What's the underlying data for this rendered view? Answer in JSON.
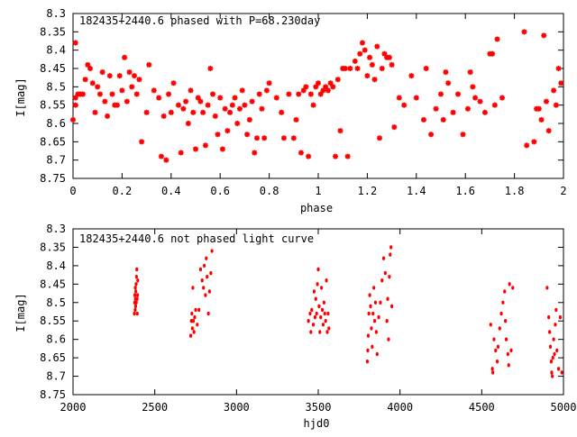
{
  "chart_data": [
    {
      "type": "scatter",
      "title": "182435+2440.6 phased with P=68.230day",
      "xlabel": "phase",
      "ylabel": "I[mag]",
      "xlim": [
        0,
        2
      ],
      "ylim": [
        8.75,
        8.3
      ],
      "y_inverted": true,
      "grid": false,
      "marker": "star",
      "color": "#ff0000",
      "x_ticks": [
        "0",
        "0.2",
        "0.4",
        "0.6",
        "0.8",
        "1",
        "1.2",
        "1.4",
        "1.6",
        "1.8",
        "2"
      ],
      "y_ticks": [
        "8.3",
        "8.35",
        "8.4",
        "8.45",
        "8.5",
        "8.55",
        "8.6",
        "8.65",
        "8.7",
        "8.75"
      ],
      "points": [
        [
          0.0,
          8.59
        ],
        [
          0.01,
          8.38
        ],
        [
          0.01,
          8.55
        ],
        [
          0.01,
          8.53
        ],
        [
          0.02,
          8.52
        ],
        [
          0.03,
          8.52
        ],
        [
          0.04,
          8.52
        ],
        [
          0.05,
          8.48
        ],
        [
          0.06,
          8.44
        ],
        [
          0.07,
          8.45
        ],
        [
          0.08,
          8.49
        ],
        [
          0.09,
          8.57
        ],
        [
          0.1,
          8.5
        ],
        [
          0.11,
          8.52
        ],
        [
          0.12,
          8.46
        ],
        [
          0.13,
          8.54
        ],
        [
          0.14,
          8.58
        ],
        [
          0.15,
          8.47
        ],
        [
          0.16,
          8.52
        ],
        [
          0.17,
          8.55
        ],
        [
          0.18,
          8.55
        ],
        [
          0.19,
          8.47
        ],
        [
          0.2,
          8.51
        ],
        [
          0.21,
          8.42
        ],
        [
          0.22,
          8.54
        ],
        [
          0.23,
          8.46
        ],
        [
          0.24,
          8.5
        ],
        [
          0.25,
          8.47
        ],
        [
          0.26,
          8.52
        ],
        [
          0.27,
          8.48
        ],
        [
          0.28,
          8.65
        ],
        [
          0.3,
          8.57
        ],
        [
          0.31,
          8.44
        ],
        [
          0.33,
          8.51
        ],
        [
          0.35,
          8.53
        ],
        [
          0.36,
          8.69
        ],
        [
          0.37,
          8.58
        ],
        [
          0.38,
          8.7
        ],
        [
          0.39,
          8.52
        ],
        [
          0.4,
          8.57
        ],
        [
          0.41,
          8.49
        ],
        [
          0.43,
          8.55
        ],
        [
          0.44,
          8.68
        ],
        [
          0.45,
          8.56
        ],
        [
          0.46,
          8.54
        ],
        [
          0.47,
          8.6
        ],
        [
          0.48,
          8.51
        ],
        [
          0.49,
          8.57
        ],
        [
          0.5,
          8.67
        ],
        [
          0.51,
          8.53
        ],
        [
          0.52,
          8.54
        ],
        [
          0.53,
          8.57
        ],
        [
          0.54,
          8.66
        ],
        [
          0.55,
          8.55
        ],
        [
          0.56,
          8.45
        ],
        [
          0.57,
          8.52
        ],
        [
          0.58,
          8.58
        ],
        [
          0.59,
          8.63
        ],
        [
          0.6,
          8.53
        ],
        [
          0.61,
          8.67
        ],
        [
          0.62,
          8.56
        ],
        [
          0.63,
          8.62
        ],
        [
          0.64,
          8.57
        ],
        [
          0.65,
          8.55
        ],
        [
          0.66,
          8.53
        ],
        [
          0.67,
          8.6
        ],
        [
          0.68,
          8.56
        ],
        [
          0.69,
          8.51
        ],
        [
          0.7,
          8.55
        ],
        [
          0.71,
          8.63
        ],
        [
          0.72,
          8.59
        ],
        [
          0.73,
          8.54
        ],
        [
          0.74,
          8.68
        ],
        [
          0.75,
          8.64
        ],
        [
          0.76,
          8.52
        ],
        [
          0.77,
          8.56
        ],
        [
          0.78,
          8.64
        ],
        [
          0.79,
          8.51
        ],
        [
          0.8,
          8.49
        ],
        [
          0.83,
          8.53
        ],
        [
          0.85,
          8.57
        ],
        [
          0.86,
          8.64
        ],
        [
          0.88,
          8.52
        ],
        [
          0.9,
          8.64
        ],
        [
          0.91,
          8.59
        ],
        [
          0.92,
          8.52
        ],
        [
          0.93,
          8.68
        ],
        [
          0.94,
          8.51
        ],
        [
          0.95,
          8.5
        ],
        [
          0.96,
          8.69
        ],
        [
          0.97,
          8.52
        ],
        [
          0.98,
          8.55
        ],
        [
          0.99,
          8.5
        ],
        [
          1.0,
          8.49
        ],
        [
          1.01,
          8.52
        ],
        [
          1.02,
          8.51
        ],
        [
          1.03,
          8.5
        ],
        [
          1.04,
          8.51
        ],
        [
          1.05,
          8.49
        ],
        [
          1.06,
          8.5
        ],
        [
          1.07,
          8.69
        ],
        [
          1.08,
          8.48
        ],
        [
          1.09,
          8.62
        ],
        [
          1.1,
          8.45
        ],
        [
          1.11,
          8.45
        ],
        [
          1.12,
          8.69
        ],
        [
          1.13,
          8.45
        ],
        [
          1.15,
          8.43
        ],
        [
          1.16,
          8.45
        ],
        [
          1.17,
          8.41
        ],
        [
          1.18,
          8.38
        ],
        [
          1.19,
          8.4
        ],
        [
          1.2,
          8.47
        ],
        [
          1.21,
          8.42
        ],
        [
          1.22,
          8.44
        ],
        [
          1.23,
          8.48
        ],
        [
          1.24,
          8.39
        ],
        [
          1.25,
          8.64
        ],
        [
          1.26,
          8.45
        ],
        [
          1.27,
          8.41
        ],
        [
          1.28,
          8.42
        ],
        [
          1.29,
          8.42
        ],
        [
          1.3,
          8.44
        ],
        [
          1.31,
          8.61
        ],
        [
          1.33,
          8.53
        ],
        [
          1.35,
          8.55
        ],
        [
          1.38,
          8.47
        ],
        [
          1.4,
          8.53
        ],
        [
          1.43,
          8.59
        ],
        [
          1.44,
          8.45
        ],
        [
          1.46,
          8.63
        ],
        [
          1.48,
          8.56
        ],
        [
          1.5,
          8.52
        ],
        [
          1.51,
          8.59
        ],
        [
          1.52,
          8.46
        ],
        [
          1.53,
          8.49
        ],
        [
          1.55,
          8.57
        ],
        [
          1.57,
          8.52
        ],
        [
          1.59,
          8.63
        ],
        [
          1.61,
          8.56
        ],
        [
          1.62,
          8.46
        ],
        [
          1.63,
          8.5
        ],
        [
          1.64,
          8.53
        ],
        [
          1.66,
          8.54
        ],
        [
          1.68,
          8.57
        ],
        [
          1.7,
          8.41
        ],
        [
          1.71,
          8.41
        ],
        [
          1.72,
          8.55
        ],
        [
          1.73,
          8.37
        ],
        [
          1.75,
          8.53
        ],
        [
          1.84,
          8.35
        ],
        [
          1.85,
          8.66
        ],
        [
          1.88,
          8.65
        ],
        [
          1.89,
          8.56
        ],
        [
          1.9,
          8.56
        ],
        [
          1.91,
          8.59
        ],
        [
          1.92,
          8.36
        ],
        [
          1.93,
          8.54
        ],
        [
          1.94,
          8.62
        ],
        [
          1.96,
          8.51
        ],
        [
          1.97,
          8.55
        ],
        [
          1.98,
          8.45
        ],
        [
          1.99,
          8.49
        ]
      ]
    },
    {
      "type": "scatter",
      "title": "182435+2440.6 not phased light curve",
      "xlabel": "hjd0",
      "ylabel": "I[mag]",
      "xlim": [
        2000,
        5000
      ],
      "ylim": [
        8.75,
        8.3
      ],
      "y_inverted": true,
      "grid": false,
      "marker": "dot",
      "color": "#ff0000",
      "x_ticks": [
        "2000",
        "2500",
        "3000",
        "3500",
        "4000",
        "4500",
        "5000"
      ],
      "y_ticks": [
        "8.3",
        "8.35",
        "8.4",
        "8.45",
        "8.5",
        "8.55",
        "8.6",
        "8.65",
        "8.7",
        "8.75"
      ],
      "points": [
        [
          2375,
          8.53
        ],
        [
          2377,
          8.5
        ],
        [
          2378,
          8.48
        ],
        [
          2380,
          8.52
        ],
        [
          2381,
          8.46
        ],
        [
          2382,
          8.49
        ],
        [
          2383,
          8.51
        ],
        [
          2384,
          8.47
        ],
        [
          2386,
          8.45
        ],
        [
          2387,
          8.5
        ],
        [
          2388,
          8.43
        ],
        [
          2390,
          8.41
        ],
        [
          2392,
          8.49
        ],
        [
          2393,
          8.53
        ],
        [
          2395,
          8.48
        ],
        [
          2396,
          8.44
        ],
        [
          2720,
          8.59
        ],
        [
          2724,
          8.55
        ],
        [
          2727,
          8.53
        ],
        [
          2730,
          8.57
        ],
        [
          2733,
          8.46
        ],
        [
          2736,
          8.55
        ],
        [
          2740,
          8.58
        ],
        [
          2744,
          8.54
        ],
        [
          2750,
          8.52
        ],
        [
          2760,
          8.56
        ],
        [
          2770,
          8.52
        ],
        [
          2780,
          8.41
        ],
        [
          2790,
          8.44
        ],
        [
          2798,
          8.46
        ],
        [
          2803,
          8.4
        ],
        [
          2810,
          8.48
        ],
        [
          2815,
          8.38
        ],
        [
          2820,
          8.43
        ],
        [
          2828,
          8.53
        ],
        [
          2835,
          8.47
        ],
        [
          2843,
          8.42
        ],
        [
          2850,
          8.36
        ],
        [
          3440,
          8.55
        ],
        [
          3450,
          8.53
        ],
        [
          3455,
          8.58
        ],
        [
          3460,
          8.52
        ],
        [
          3470,
          8.56
        ],
        [
          3475,
          8.47
        ],
        [
          3480,
          8.54
        ],
        [
          3485,
          8.49
        ],
        [
          3490,
          8.53
        ],
        [
          3495,
          8.45
        ],
        [
          3500,
          8.41
        ],
        [
          3505,
          8.51
        ],
        [
          3510,
          8.58
        ],
        [
          3515,
          8.54
        ],
        [
          3520,
          8.46
        ],
        [
          3525,
          8.52
        ],
        [
          3530,
          8.56
        ],
        [
          3535,
          8.5
        ],
        [
          3540,
          8.53
        ],
        [
          3545,
          8.55
        ],
        [
          3550,
          8.44
        ],
        [
          3555,
          8.58
        ],
        [
          3560,
          8.53
        ],
        [
          3565,
          8.57
        ],
        [
          3800,
          8.66
        ],
        [
          3803,
          8.63
        ],
        [
          3806,
          8.59
        ],
        [
          3810,
          8.53
        ],
        [
          3815,
          8.48
        ],
        [
          3820,
          8.51
        ],
        [
          3825,
          8.57
        ],
        [
          3830,
          8.62
        ],
        [
          3835,
          8.53
        ],
        [
          3840,
          8.46
        ],
        [
          3845,
          8.55
        ],
        [
          3850,
          8.5
        ],
        [
          3855,
          8.58
        ],
        [
          3860,
          8.64
        ],
        [
          3870,
          8.54
        ],
        [
          3880,
          8.5
        ],
        [
          3890,
          8.44
        ],
        [
          3900,
          8.38
        ],
        [
          3910,
          8.42
        ],
        [
          3920,
          8.55
        ],
        [
          3925,
          8.49
        ],
        [
          3930,
          8.6
        ],
        [
          3935,
          8.43
        ],
        [
          3940,
          8.37
        ],
        [
          3945,
          8.35
        ],
        [
          3950,
          8.51
        ],
        [
          4555,
          8.56
        ],
        [
          4565,
          8.68
        ],
        [
          4568,
          8.69
        ],
        [
          4575,
          8.6
        ],
        [
          4585,
          8.63
        ],
        [
          4595,
          8.66
        ],
        [
          4600,
          8.62
        ],
        [
          4610,
          8.57
        ],
        [
          4620,
          8.53
        ],
        [
          4630,
          8.5
        ],
        [
          4640,
          8.47
        ],
        [
          4645,
          8.55
        ],
        [
          4650,
          8.6
        ],
        [
          4660,
          8.64
        ],
        [
          4665,
          8.67
        ],
        [
          4670,
          8.45
        ],
        [
          4680,
          8.63
        ],
        [
          4690,
          8.46
        ],
        [
          4900,
          8.46
        ],
        [
          4910,
          8.54
        ],
        [
          4915,
          8.58
        ],
        [
          4920,
          8.62
        ],
        [
          4925,
          8.66
        ],
        [
          4928,
          8.69
        ],
        [
          4932,
          8.7
        ],
        [
          4935,
          8.65
        ],
        [
          4940,
          8.6
        ],
        [
          4945,
          8.64
        ],
        [
          4950,
          8.56
        ],
        [
          4955,
          8.52
        ],
        [
          4960,
          8.63
        ],
        [
          4970,
          8.68
        ],
        [
          4980,
          8.54
        ],
        [
          4990,
          8.69
        ]
      ]
    }
  ]
}
